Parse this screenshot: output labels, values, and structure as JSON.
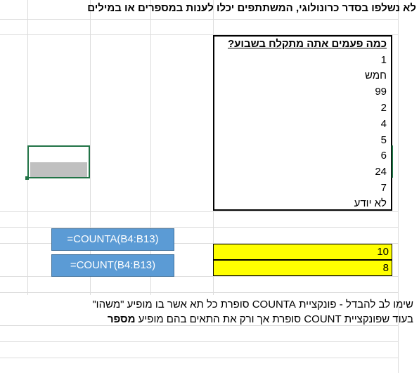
{
  "title": "לא נשלפו בסדר כרונולוגי, המשתתפים יכלו לענות במספרים או במילים",
  "table": {
    "header": "כמה פעמים אתה מתקלח בשבוע?",
    "rows": [
      "1",
      "חמש",
      "99",
      "2",
      "4",
      "5",
      "6",
      "24",
      "7",
      "לא יודע"
    ]
  },
  "formulas": {
    "counta": "=COUNTA(B4:B13)",
    "count": "=COUNT(B4:B13)"
  },
  "results": {
    "counta": "10",
    "count": "8"
  },
  "notes": {
    "line1": "שימו לב להבדל - פונקציית COUNTA סופרת כל תא אשר בו מופיע \"משהו\"",
    "line2_start": "בעוד שפונקציית COUNT סופרת אך ורק את התאים בהם מופיע ",
    "line2_bold": "מספר"
  },
  "colors": {
    "formula_button": "#5b9bd5",
    "highlight": "#ffff00",
    "selection": "#217346"
  }
}
